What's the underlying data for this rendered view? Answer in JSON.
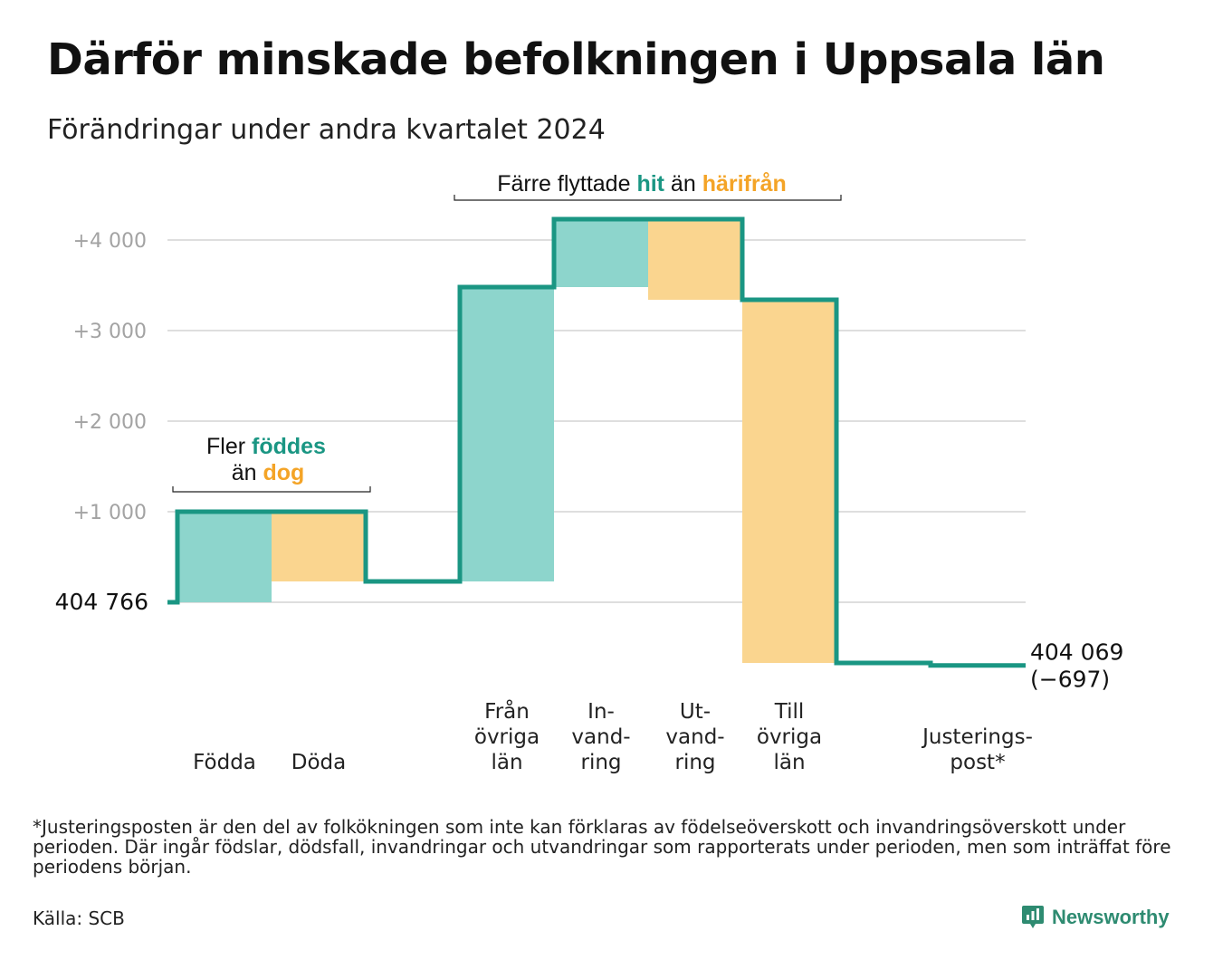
{
  "title": "Därför minskade befolkningen i Uppsala län",
  "subtitle": "Förändringar under andra kvartalet 2024",
  "footnote": "*Justeringsposten är den del av folkökningen som inte kan förklaras av födelseöverskott och invandringsöverskott under perioden. Där ingår födslar, dödsfall, invandringar och utvandringar som rapporterats under perioden, men som inträffat före periodens början.",
  "source": "Källa: SCB",
  "logo_text": "Newsworthy",
  "colors": {
    "increase": "#8dd5cc",
    "decrease": "#fad58f",
    "line": "#1a9683",
    "teal_text": "#1a9683",
    "orange_text": "#f4a427",
    "grid": "#dedede"
  },
  "annotations": {
    "births_deaths": {
      "line1_prefix": "Fler ",
      "line1_highlight": "föddes",
      "line2_prefix": "än ",
      "line2_highlight": "dog"
    },
    "migration": {
      "prefix": "Färre flyttade ",
      "highlight1": "hit",
      "middle": " än ",
      "highlight2": "härifrån"
    }
  },
  "chart_data": {
    "type": "waterfall",
    "start_value": 404766,
    "start_label": "404  766",
    "end_value": 404069,
    "end_label_line1": "404 069",
    "end_label_line2": "(−697)",
    "y_ticks": [
      {
        "value": 1000,
        "label": "+1  000"
      },
      {
        "value": 2000,
        "label": "+2  000"
      },
      {
        "value": 3000,
        "label": "+3  000"
      },
      {
        "value": 4000,
        "label": "+4  000"
      }
    ],
    "ylim": [
      -800,
      4300
    ],
    "steps": [
      {
        "label_lines": [
          "Födda"
        ],
        "change": 1000,
        "type": "increase"
      },
      {
        "label_lines": [
          "Döda"
        ],
        "change": -770,
        "type": "decrease"
      },
      {
        "label_lines": [],
        "change": 0,
        "type": "none"
      },
      {
        "label_lines": [
          "Från",
          "övriga",
          "län"
        ],
        "change": 3250,
        "type": "increase"
      },
      {
        "label_lines": [
          "In-",
          "vand-",
          "ring"
        ],
        "change": 750,
        "type": "increase"
      },
      {
        "label_lines": [
          "Ut-",
          "vand-",
          "ring"
        ],
        "change": -890,
        "type": "decrease"
      },
      {
        "label_lines": [
          "Till",
          "övriga",
          "län"
        ],
        "change": -4010,
        "type": "decrease"
      },
      {
        "label_lines": [],
        "change": 0,
        "type": "none"
      },
      {
        "label_lines": [
          "Justerings-",
          "post*"
        ],
        "change": -27,
        "type": "none"
      }
    ]
  }
}
